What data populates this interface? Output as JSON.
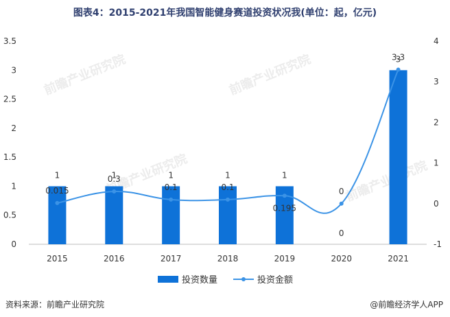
{
  "title": "图表4：2015-2021年我国智能健身赛道投资状况我(单位：起，亿元)",
  "watermark": "前瞻产业研究院",
  "source": "资料来源：前瞻产业研究院",
  "brand": "@前瞻经济学人APP",
  "colors": {
    "bar": "#0e72d8",
    "line": "#3b93e6",
    "text": "#333333",
    "title": "#2f3f6f"
  },
  "chart_data": {
    "type": "bar",
    "categories": [
      "2015",
      "2016",
      "2017",
      "2018",
      "2019",
      "2020",
      "2021"
    ],
    "series": [
      {
        "name": "投资数量",
        "type": "bar",
        "axis": "left",
        "values": [
          1,
          1,
          1,
          1,
          1,
          0,
          3
        ],
        "labels": [
          "1",
          "1",
          "1",
          "1",
          "1",
          "0",
          "3"
        ]
      },
      {
        "name": "投资金额",
        "type": "line",
        "axis": "right",
        "values": [
          0.015,
          0.3,
          0.1,
          0.1,
          0.195,
          0,
          3.3
        ],
        "labels": [
          "0.015",
          "0.3",
          "0.1",
          "0.1",
          "0.195",
          "0",
          "3.3"
        ]
      }
    ],
    "y_left": {
      "min": 0,
      "max": 3.5,
      "ticks": [
        "0",
        "0.5",
        "1",
        "1.5",
        "2",
        "2.5",
        "3",
        "3.5"
      ]
    },
    "y_right": {
      "min": -1,
      "max": 4,
      "ticks": [
        "-1",
        "0",
        "1",
        "2",
        "3",
        "4"
      ]
    },
    "legend_position": "bottom-center",
    "grid": false
  }
}
